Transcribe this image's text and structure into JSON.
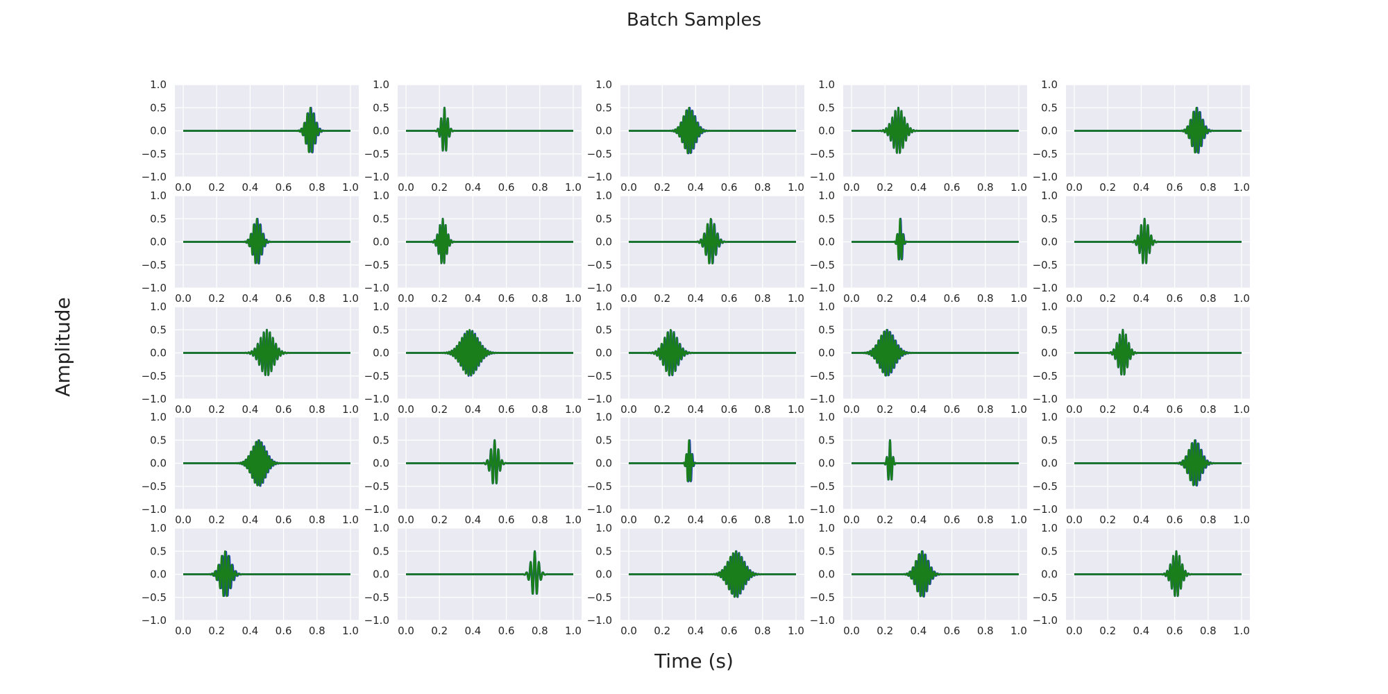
{
  "figure": {
    "title": "Batch Samples",
    "xlabel": "Time (s)",
    "ylabel": "Amplitude"
  },
  "style": {
    "background": "#ffffff",
    "axes_facecolor": "#eaeaf2",
    "grid_color": "#ffffff",
    "series_colors": [
      "#1f3fb4",
      "#1a7f1a"
    ]
  },
  "chart_data": {
    "type": "line",
    "layout": {
      "rows": 5,
      "cols": 5
    },
    "xlim": [
      -0.05,
      1.05
    ],
    "ylim": [
      -1.0,
      1.0
    ],
    "x_ticks": [
      "0.0",
      "0.2",
      "0.4",
      "0.6",
      "0.8",
      "1.0"
    ],
    "y_ticks": [
      "1.0",
      "0.5",
      "0.0",
      "−0.5",
      "−1.0"
    ],
    "grid": true,
    "legend": "none",
    "signal": "Gaussian-windowed sinusoid, peak amplitude ≈0.5, sampled on t ∈ [0, 1]",
    "panels": [
      {
        "center": 0.76,
        "width": 0.025,
        "freq": 55,
        "shift": 0.004
      },
      {
        "center": 0.23,
        "width": 0.018,
        "freq": 50,
        "shift": 0.0
      },
      {
        "center": 0.36,
        "width": 0.035,
        "freq": 60,
        "shift": 0.004
      },
      {
        "center": 0.28,
        "width": 0.035,
        "freq": 55,
        "shift": 0.0
      },
      {
        "center": 0.73,
        "width": 0.03,
        "freq": 55,
        "shift": 0.004
      },
      {
        "center": 0.44,
        "width": 0.025,
        "freq": 55,
        "shift": 0.004
      },
      {
        "center": 0.22,
        "width": 0.022,
        "freq": 60,
        "shift": 0.0
      },
      {
        "center": 0.49,
        "width": 0.028,
        "freq": 50,
        "shift": 0.002
      },
      {
        "center": 0.29,
        "width": 0.012,
        "freq": 55,
        "shift": 0.003
      },
      {
        "center": 0.42,
        "width": 0.025,
        "freq": 50,
        "shift": 0.0
      },
      {
        "center": 0.5,
        "width": 0.04,
        "freq": 55,
        "shift": 0.0
      },
      {
        "center": 0.38,
        "width": 0.05,
        "freq": 65,
        "shift": 0.002
      },
      {
        "center": 0.25,
        "width": 0.04,
        "freq": 55,
        "shift": 0.002
      },
      {
        "center": 0.21,
        "width": 0.045,
        "freq": 60,
        "shift": 0.004
      },
      {
        "center": 0.29,
        "width": 0.028,
        "freq": 55,
        "shift": 0.0
      },
      {
        "center": 0.45,
        "width": 0.04,
        "freq": 65,
        "shift": 0.004
      },
      {
        "center": 0.53,
        "width": 0.022,
        "freq": 45,
        "shift": 0.0
      },
      {
        "center": 0.36,
        "width": 0.012,
        "freq": 60,
        "shift": 0.004
      },
      {
        "center": 0.23,
        "width": 0.012,
        "freq": 50,
        "shift": 0.0
      },
      {
        "center": 0.72,
        "width": 0.035,
        "freq": 55,
        "shift": 0.004
      },
      {
        "center": 0.25,
        "width": 0.03,
        "freq": 50,
        "shift": 0.005
      },
      {
        "center": 0.77,
        "width": 0.022,
        "freq": 40,
        "shift": 0.0
      },
      {
        "center": 0.64,
        "width": 0.045,
        "freq": 60,
        "shift": 0.003
      },
      {
        "center": 0.42,
        "width": 0.035,
        "freq": 55,
        "shift": 0.004
      },
      {
        "center": 0.61,
        "width": 0.028,
        "freq": 55,
        "shift": 0.0
      }
    ]
  }
}
